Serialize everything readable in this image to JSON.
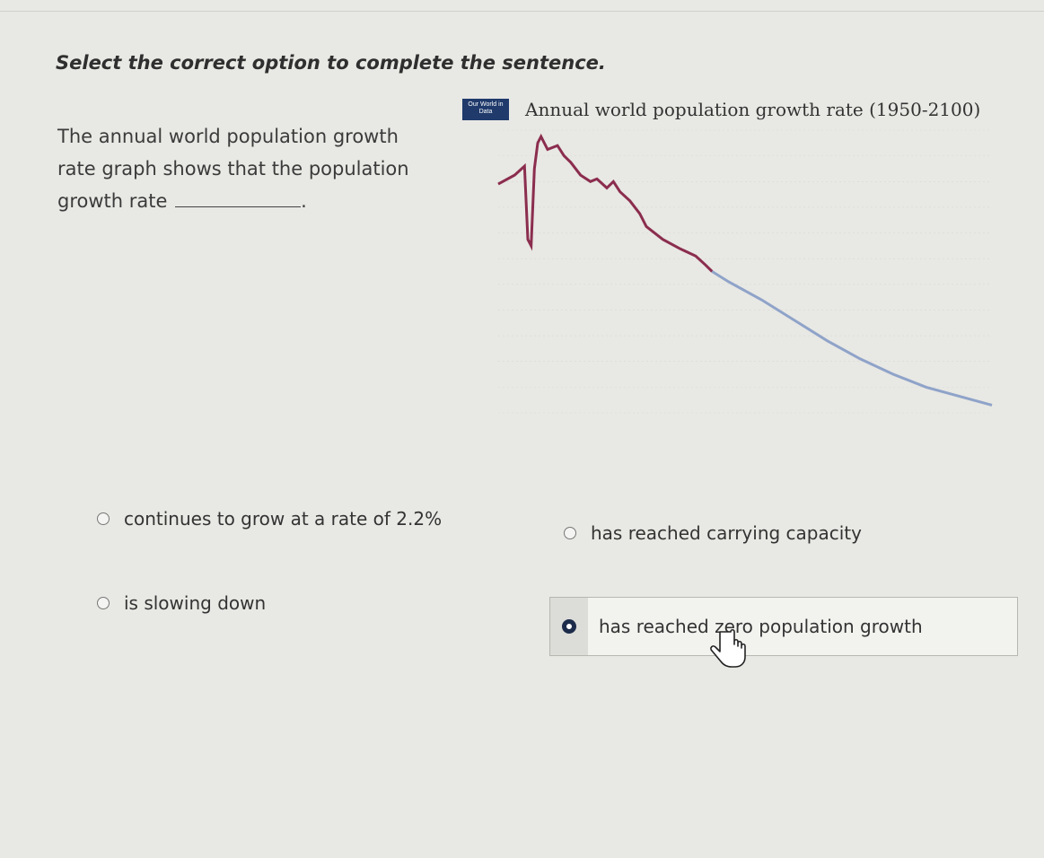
{
  "question": {
    "prompt": "Select the correct option to complete the sentence.",
    "stem_before": "The annual world population growth rate graph shows that the population growth rate",
    "stem_after": "."
  },
  "chart": {
    "logo_text": "Our World in Data",
    "title": "Annual world population growth rate (1950-2100)"
  },
  "options": [
    {
      "label": "continues to grow at a rate of 2.2%",
      "selected": false
    },
    {
      "label": "has reached carrying capacity",
      "selected": false
    },
    {
      "label": "is slowing down",
      "selected": false
    },
    {
      "label": "has reached zero population growth",
      "selected": true
    }
  ],
  "colors": {
    "historical_line": "#8b2d4e",
    "projection_line": "#8fa3c9",
    "selected_radio": "#1c2b4a"
  },
  "chart_data": {
    "type": "line",
    "title": "Annual world population growth rate (1950-2100)",
    "xlim": [
      1950,
      2100
    ],
    "ylim": [
      0,
      2.2
    ],
    "series": [
      {
        "x": [
          1950,
          1955,
          1958,
          1959,
          1960,
          1961,
          1962,
          1963,
          1965,
          1968,
          1970,
          1972,
          1975,
          1978,
          1980,
          1983,
          1985,
          1987,
          1990,
          1993,
          1995,
          2000,
          2005,
          2010,
          2013,
          2015
        ],
        "y": [
          1.78,
          1.85,
          1.92,
          1.35,
          1.3,
          1.9,
          2.1,
          2.15,
          2.05,
          2.08,
          2.0,
          1.95,
          1.85,
          1.8,
          1.82,
          1.75,
          1.8,
          1.72,
          1.65,
          1.55,
          1.45,
          1.35,
          1.28,
          1.22,
          1.15,
          1.1
        ]
      },
      {
        "x": [
          2015,
          2020,
          2030,
          2040,
          2050,
          2060,
          2070,
          2080,
          2090,
          2100
        ],
        "y": [
          1.1,
          1.02,
          0.88,
          0.72,
          0.56,
          0.42,
          0.3,
          0.2,
          0.13,
          0.06
        ]
      }
    ]
  }
}
